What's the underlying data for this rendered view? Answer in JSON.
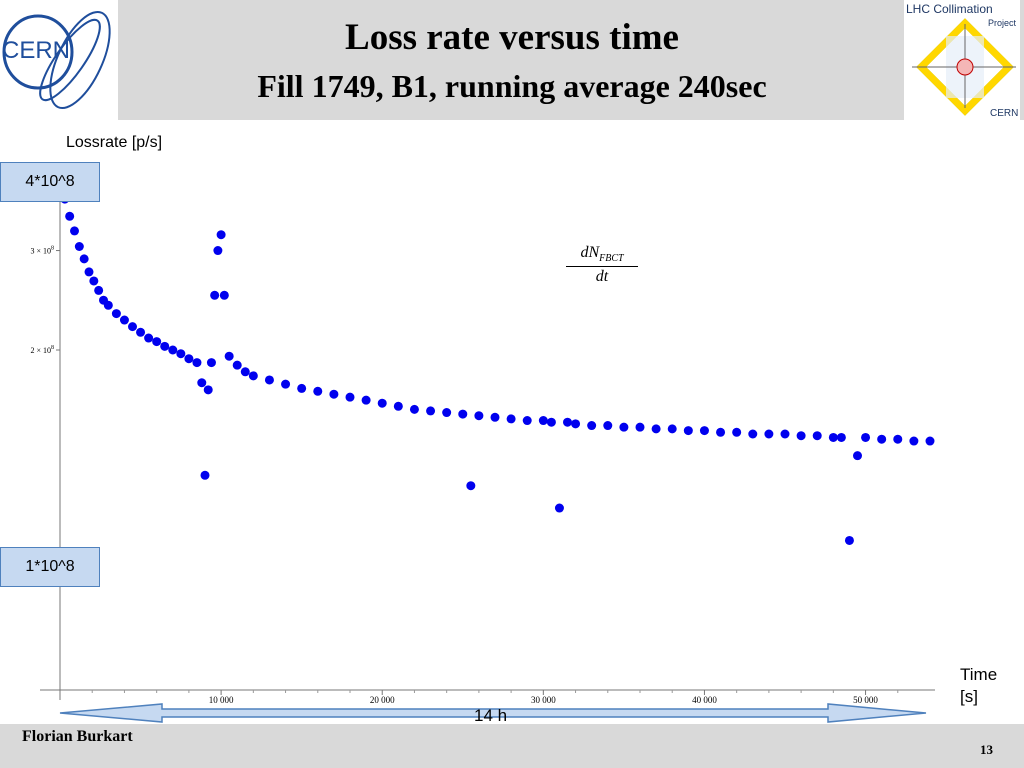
{
  "slide": {
    "title": "Loss rate versus time",
    "subtitle": "Fill 1749, B1, running average 240sec",
    "author": "Florian Burkart",
    "page_number": "13",
    "cern_logo_text": "CERN",
    "lhc_logo_text": [
      "LHC Collimation",
      "Project",
      "CERN"
    ]
  },
  "annotations": {
    "ylabel": "Lossrate [p/s]",
    "callout_top": "4*10^8",
    "callout_bottom": "1*10^8",
    "time_label": "Time [s]",
    "duration_arrow": "14 h",
    "formula": {
      "numerator": "dN",
      "subscript": "FBCT",
      "denominator": "dt"
    }
  },
  "colors": {
    "series": "#0000ee",
    "callout_fill": "#c6d9f1",
    "callout_border": "#4f81bd",
    "header": "#d9d9d9"
  },
  "chart_data": {
    "type": "scatter",
    "title": "Loss rate versus time",
    "subtitle": "Fill 1749, B1, running average 240sec",
    "xlabel": "Time [s]",
    "ylabel": "Lossrate [p/s]",
    "xlim": [
      0,
      54000
    ],
    "ylim": [
      50000000,
      400000000
    ],
    "y_scale": "log",
    "x_ticks": [
      10000,
      20000,
      30000,
      40000,
      50000
    ],
    "x_tick_labels": [
      "10 000",
      "20 000",
      "30 000",
      "40 000",
      "50 000"
    ],
    "y_ticks": [
      200000000,
      300000000
    ],
    "y_tick_labels": [
      "2 × 10",
      "3 × 10"
    ],
    "y_tick_exponent": "8",
    "grid": false,
    "series": [
      {
        "marker": "circle",
        "x": [
          0,
          300,
          600,
          900,
          1200,
          1500,
          1800,
          2100,
          2400,
          2700,
          3000,
          3500,
          4000,
          4500,
          5000,
          5500,
          6000,
          6500,
          7000,
          7500,
          8000,
          8500,
          8800,
          9000,
          9200,
          9400,
          9600,
          9800,
          10000,
          10200,
          10500,
          11000,
          11500,
          12000,
          13000,
          14000,
          15000,
          16000,
          17000,
          18000,
          19000,
          20000,
          21000,
          22000,
          23000,
          24000,
          25000,
          25500,
          26000,
          27000,
          28000,
          29000,
          30000,
          30500,
          31000,
          31500,
          32000,
          33000,
          34000,
          35000,
          36000,
          37000,
          38000,
          39000,
          40000,
          41000,
          42000,
          43000,
          44000,
          45000,
          46000,
          47000,
          48000,
          48500,
          49000,
          49500,
          50000,
          51000,
          52000,
          53000,
          54000
        ],
        "y": [
          390000000,
          370000000,
          345000000,
          325000000,
          305000000,
          290000000,
          275000000,
          265000000,
          255000000,
          245000000,
          240000000,
          232000000,
          226000000,
          220000000,
          215000000,
          210000000,
          207000000,
          203000000,
          200000000,
          197000000,
          193000000,
          190000000,
          175000000,
          120000000,
          170000000,
          190000000,
          250000000,
          300000000,
          320000000,
          250000000,
          195000000,
          188000000,
          183000000,
          180000000,
          177000000,
          174000000,
          171000000,
          169000000,
          167000000,
          165000000,
          163000000,
          161000000,
          159000000,
          157000000,
          156000000,
          155000000,
          154000000,
          115000000,
          153000000,
          152000000,
          151000000,
          150000000,
          150000000,
          149000000,
          105000000,
          149000000,
          148000000,
          147000000,
          147000000,
          146000000,
          146000000,
          145000000,
          145000000,
          144000000,
          144000000,
          143000000,
          143000000,
          142000000,
          142000000,
          142000000,
          141000000,
          141000000,
          140000000,
          140000000,
          92000000,
          130000000,
          140000000,
          139000000,
          139000000,
          138000000,
          138000000
        ]
      }
    ]
  }
}
